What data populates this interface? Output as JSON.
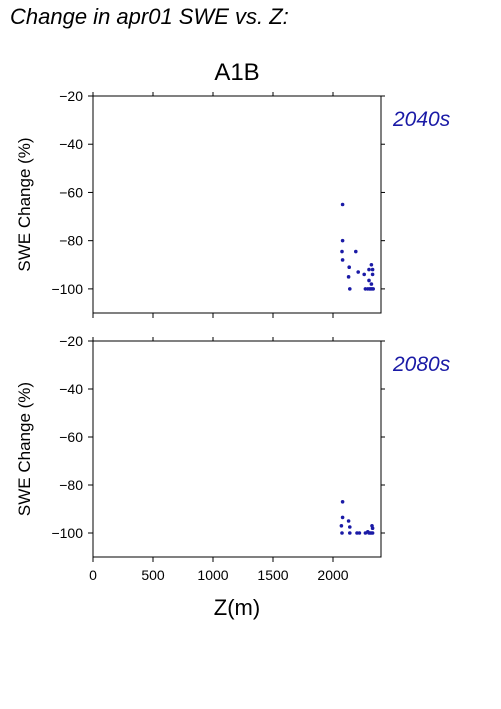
{
  "figure": {
    "title": "Change in apr01 SWE vs. Z:",
    "scenario": "A1B"
  },
  "colors": {
    "points": "#1a1aa6",
    "period_label": "#1a1aa6",
    "axes": "#000000"
  },
  "chart_data": [
    {
      "type": "scatter",
      "period_label": "2040s",
      "xlabel": "",
      "ylabel": "SWE Change (%)",
      "xlim": [
        0,
        2400
      ],
      "ylim": [
        -110,
        -20
      ],
      "xticks": [
        "0",
        "500",
        "1000",
        "1500",
        "2000"
      ],
      "yticks": [
        "−20",
        "−40",
        "−60",
        "−80",
        "−100"
      ],
      "points": [
        {
          "x": 2080,
          "y": -65
        },
        {
          "x": 2080,
          "y": -80
        },
        {
          "x": 2075,
          "y": -84.5
        },
        {
          "x": 2080,
          "y": -88
        },
        {
          "x": 2135,
          "y": -91
        },
        {
          "x": 2190,
          "y": -84.5
        },
        {
          "x": 2210,
          "y": -93
        },
        {
          "x": 2260,
          "y": -94
        },
        {
          "x": 2130,
          "y": -95
        },
        {
          "x": 2140,
          "y": -100
        },
        {
          "x": 2270,
          "y": -100
        },
        {
          "x": 2300,
          "y": -92
        },
        {
          "x": 2320,
          "y": -90
        },
        {
          "x": 2330,
          "y": -92
        },
        {
          "x": 2330,
          "y": -94
        },
        {
          "x": 2300,
          "y": -96.5
        },
        {
          "x": 2290,
          "y": -100
        },
        {
          "x": 2305,
          "y": -100
        },
        {
          "x": 2315,
          "y": -100
        },
        {
          "x": 2325,
          "y": -100
        },
        {
          "x": 2335,
          "y": -100
        },
        {
          "x": 2320,
          "y": -98
        }
      ]
    },
    {
      "type": "scatter",
      "period_label": "2080s",
      "xlabel": "Z(m)",
      "ylabel": "SWE Change (%)",
      "xlim": [
        0,
        2400
      ],
      "ylim": [
        -110,
        -20
      ],
      "xticks": [
        "0",
        "500",
        "1000",
        "1500",
        "2000"
      ],
      "yticks": [
        "−20",
        "−40",
        "−60",
        "−80",
        "−100"
      ],
      "points": [
        {
          "x": 2080,
          "y": -87
        },
        {
          "x": 2080,
          "y": -93.5
        },
        {
          "x": 2070,
          "y": -97
        },
        {
          "x": 2130,
          "y": -95
        },
        {
          "x": 2140,
          "y": -97.5
        },
        {
          "x": 2075,
          "y": -100
        },
        {
          "x": 2140,
          "y": -100
        },
        {
          "x": 2200,
          "y": -100
        },
        {
          "x": 2220,
          "y": -100
        },
        {
          "x": 2270,
          "y": -100
        },
        {
          "x": 2290,
          "y": -99.5
        },
        {
          "x": 2300,
          "y": -100
        },
        {
          "x": 2310,
          "y": -100
        },
        {
          "x": 2320,
          "y": -100
        },
        {
          "x": 2330,
          "y": -98
        },
        {
          "x": 2330,
          "y": -100
        },
        {
          "x": 2325,
          "y": -97
        }
      ]
    }
  ]
}
